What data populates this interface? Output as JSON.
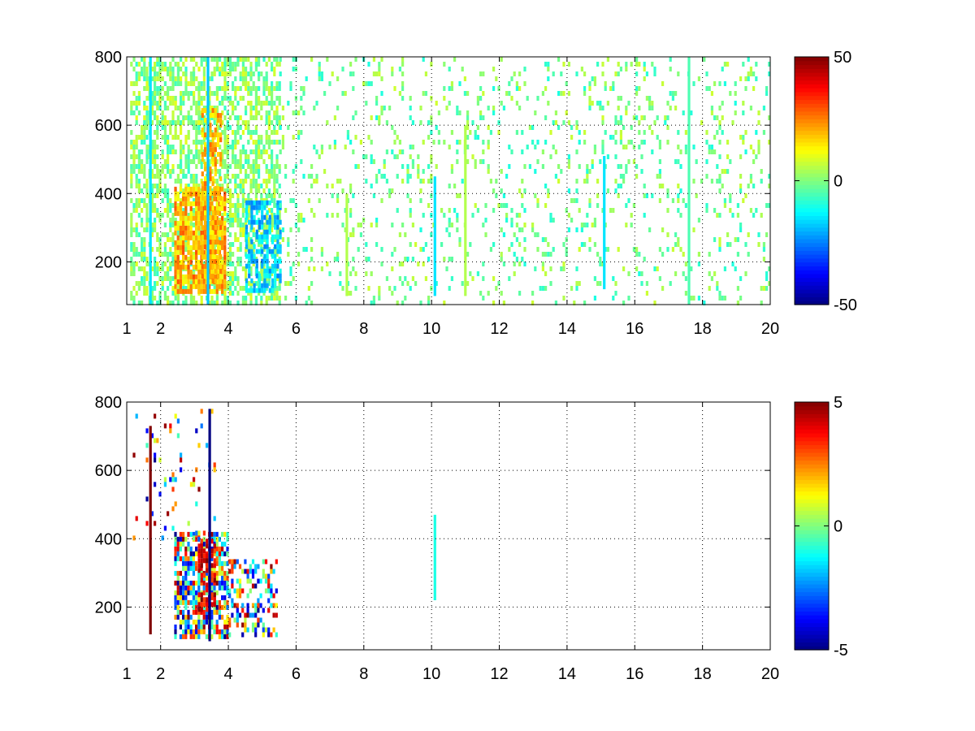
{
  "chart_data": [
    {
      "type": "heatmap",
      "title": "",
      "xlabel": "",
      "ylabel": "",
      "xlim": [
        1,
        20
      ],
      "ylim": [
        75,
        800
      ],
      "xticks": [
        1,
        2,
        4,
        6,
        8,
        10,
        12,
        14,
        16,
        18,
        20
      ],
      "xtick_labels": [
        "1",
        "2",
        "4",
        "6",
        "8",
        "10",
        "12",
        "14",
        "16",
        "18",
        "20"
      ],
      "yticks": [
        200,
        400,
        600,
        800
      ],
      "ytick_labels": [
        "200",
        "400",
        "600",
        "800"
      ],
      "grid": true,
      "colormap": "jet",
      "clim": [
        -50,
        50
      ],
      "colorbar_ticks": [
        -50,
        0,
        50
      ],
      "colorbar_tick_labels": [
        "-50",
        "0",
        "50"
      ],
      "regions": [
        {
          "x": [
            1.1,
            5.5
          ],
          "y": [
            75,
            800
          ],
          "density": 0.55,
          "min": -8,
          "max": 10
        },
        {
          "x": [
            2.4,
            3.9
          ],
          "y": [
            120,
            420
          ],
          "density": 0.85,
          "min": 10,
          "max": 30
        },
        {
          "x": [
            3.2,
            3.8
          ],
          "y": [
            150,
            650
          ],
          "density": 0.6,
          "min": 12,
          "max": 28
        },
        {
          "x": [
            4.5,
            5.5
          ],
          "y": [
            120,
            380
          ],
          "density": 0.6,
          "min": -25,
          "max": -10
        },
        {
          "x": [
            5.5,
            20
          ],
          "y": [
            75,
            800
          ],
          "density": 0.12,
          "min": -10,
          "max": 8
        }
      ],
      "columns": [
        {
          "x": 1.7,
          "y": [
            75,
            800
          ],
          "value": -15
        },
        {
          "x": 3.4,
          "y": [
            75,
            800
          ],
          "value": -18
        },
        {
          "x": 7.5,
          "y": [
            100,
            400
          ],
          "value": 5
        },
        {
          "x": 10.1,
          "y": [
            100,
            450
          ],
          "value": -15
        },
        {
          "x": 11.0,
          "y": [
            100,
            600
          ],
          "value": 5
        },
        {
          "x": 15.1,
          "y": [
            120,
            510
          ],
          "value": -15
        },
        {
          "x": 17.6,
          "y": [
            75,
            800
          ],
          "value": -5
        }
      ]
    },
    {
      "type": "heatmap",
      "title": "",
      "xlabel": "",
      "ylabel": "",
      "xlim": [
        1,
        20
      ],
      "ylim": [
        75,
        800
      ],
      "xticks": [
        1,
        2,
        4,
        6,
        8,
        10,
        12,
        14,
        16,
        18,
        20
      ],
      "xtick_labels": [
        "1",
        "2",
        "4",
        "6",
        "8",
        "10",
        "12",
        "14",
        "16",
        "18",
        "20"
      ],
      "yticks": [
        200,
        400,
        600,
        800
      ],
      "ytick_labels": [
        "200",
        "400",
        "600",
        "800"
      ],
      "grid": true,
      "colormap": "jet",
      "clim": [
        -5,
        5
      ],
      "colorbar_ticks": [
        -5,
        0,
        5
      ],
      "colorbar_tick_labels": [
        "-5",
        "0",
        "5"
      ],
      "regions": [
        {
          "x": [
            2.4,
            4.0
          ],
          "y": [
            120,
            420
          ],
          "density": 0.7,
          "min": -5,
          "max": 5
        },
        {
          "x": [
            3.1,
            3.6
          ],
          "y": [
            200,
            400
          ],
          "density": 0.7,
          "min": 3,
          "max": 5
        },
        {
          "x": [
            4.0,
            5.4
          ],
          "y": [
            120,
            340
          ],
          "density": 0.45,
          "min": -5,
          "max": 5
        },
        {
          "x": [
            1.1,
            3.6
          ],
          "y": [
            400,
            780
          ],
          "density": 0.05,
          "min": -5,
          "max": 5
        }
      ],
      "columns": [
        {
          "x": 1.7,
          "y": [
            120,
            730
          ],
          "value": 5
        },
        {
          "x": 3.45,
          "y": [
            100,
            780
          ],
          "value": -5
        },
        {
          "x": 10.1,
          "y": [
            220,
            470
          ],
          "value": -1
        }
      ]
    }
  ]
}
